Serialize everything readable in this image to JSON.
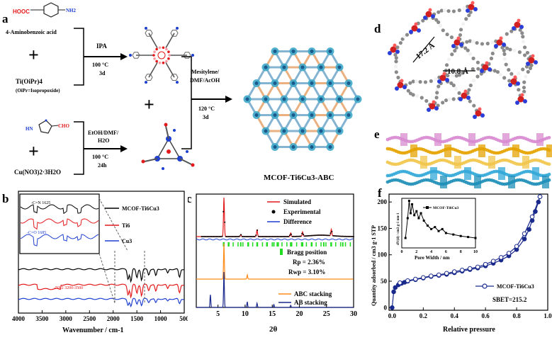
{
  "panels": {
    "a": {
      "label": "a",
      "aminobenzoic_formula_left": "HOOC",
      "aminobenzoic_formula_right": "NH2",
      "reagent1": "4-Aminobenzoic acid",
      "reagent2": "Ti(OiPr)4",
      "reagent2_note": "(OiPr=Isopropoxide)",
      "cond1_solvent": "IPA",
      "cond1_temp": "100 °C",
      "cond1_time": "3d",
      "imidazole_label": "CHO",
      "imidazole_hn": "HN",
      "reagent3": "Cu(NO3)2·3H2O",
      "cond2_solvent": "EtOH/DMF/",
      "cond2_solvent2": "H2O",
      "cond2_temp": "100 °C",
      "cond2_time": "24h",
      "cond3_line1": "Mesitylene/",
      "cond3_line2": "DMF/AcOH",
      "cond3_temp": "120 °C",
      "cond3_time": "3d",
      "plus": "+",
      "product": "MCOF-Ti6Cu3-ABC"
    },
    "b": {
      "label": "b",
      "xlabel": "Wavenumber / cm-1",
      "xticks": [
        "4000",
        "3500",
        "3000",
        "2500",
        "2000",
        "1500",
        "1000",
        "500"
      ],
      "legend": [
        "MCOF-Ti6Cu3",
        "Ti6",
        "Cu3"
      ],
      "annotations": [
        "-C=N 1625",
        "-C=O 1685",
        "-NH2 3200-3500"
      ]
    },
    "c": {
      "label": "c",
      "legend": [
        "Simulated",
        "Experimental",
        "Difference"
      ],
      "bragg": "Bragg position",
      "rp": "Rp  =  2.36%",
      "rwp": "Rwp  =  3.10%",
      "stack_legend": [
        "ABC stacking",
        "AB stacking"
      ],
      "xlabel": "2θ",
      "xticks": [
        "5",
        "10",
        "15",
        "20",
        "25",
        "30"
      ]
    },
    "d": {
      "label": "d",
      "dim1": "17.2 Å",
      "dim2": "10.8 Å"
    },
    "e": {
      "label": "e"
    },
    "f": {
      "label": "f",
      "ylabel": "Quantity adsorbed / cm3 g-1 STP",
      "xlabel": "Relative pressure",
      "yticks": [
        "0",
        "50",
        "100",
        "150",
        "200"
      ],
      "xticks": [
        "0.0",
        "0.2",
        "0.4",
        "0.6",
        "0.8",
        "1.0"
      ],
      "legend": "MCOF-Ti6Cu3",
      "sbet": "SBET=215.2",
      "inset_title": "MCOF-Ti6Cu3",
      "inset_xlabel": "Pore Width / nm",
      "inset_ylabel": "dV(d) / cm3 g-1 nm-1",
      "inset_xticks": [
        "0",
        "2",
        "4",
        "6",
        "8",
        "10"
      ]
    }
  },
  "chart_data": [
    {
      "type": "line",
      "panel": "b",
      "xlabel": "Wavenumber / cm-1",
      "xlim": [
        4000,
        500
      ],
      "series": [
        {
          "name": "MCOF-Ti6Cu3",
          "color": "#000000"
        },
        {
          "name": "Ti6",
          "color": "#e31a1c"
        },
        {
          "name": "Cu3",
          "color": "#1f3fd0"
        }
      ]
    },
    {
      "type": "line",
      "panel": "c",
      "xlabel": "2θ",
      "xlim": [
        1,
        30
      ],
      "series": [
        {
          "name": "Simulated",
          "color": "#e31a1c"
        },
        {
          "name": "Experimental",
          "color": "#000000"
        },
        {
          "name": "Difference",
          "color": "#1f3fd0"
        },
        {
          "name": "Bragg position",
          "color": "#22dd22"
        },
        {
          "name": "ABC stacking",
          "color": "#ff8c1a"
        },
        {
          "name": "AB stacking",
          "color": "#1a2a8c"
        }
      ],
      "bragg_positions": [
        6.1,
        7.0,
        9.2,
        10.6,
        12.2,
        14.0,
        15.3,
        16.1,
        18.4,
        20.6,
        22.3,
        24.5,
        25.9,
        28.0
      ]
    },
    {
      "type": "line",
      "panel": "f",
      "xlabel": "Relative pressure",
      "ylabel": "Quantity adsorbed / cm3 g-1 STP",
      "xlim": [
        0,
        1.0
      ],
      "ylim": [
        0,
        215
      ],
      "series": [
        {
          "name": "MCOF-Ti6Cu3 adsorption",
          "x": [
            0.0,
            0.01,
            0.02,
            0.04,
            0.06,
            0.08,
            0.1,
            0.15,
            0.2,
            0.25,
            0.3,
            0.35,
            0.4,
            0.45,
            0.5,
            0.55,
            0.6,
            0.65,
            0.7,
            0.75,
            0.8,
            0.85,
            0.88,
            0.9,
            0.92,
            0.94,
            0.95
          ],
          "y": [
            0,
            30,
            38,
            43,
            46,
            48,
            50,
            53,
            56,
            59,
            61,
            63,
            66,
            69,
            72,
            75,
            79,
            84,
            90,
            98,
            110,
            130,
            148,
            165,
            182,
            200,
            210
          ]
        },
        {
          "name": "MCOF-Ti6Cu3 desorption",
          "x": [
            0.95,
            0.9,
            0.85,
            0.8,
            0.75,
            0.7,
            0.65,
            0.6,
            0.55,
            0.5,
            0.45,
            0.4,
            0.35,
            0.3,
            0.25,
            0.2,
            0.15,
            0.1,
            0.05
          ],
          "y": [
            210,
            172,
            140,
            116,
            103,
            95,
            88,
            82,
            77,
            74,
            71,
            68,
            65,
            62,
            60,
            57,
            54,
            51,
            47
          ]
        }
      ],
      "annotation": "SBET=215.2"
    },
    {
      "type": "line",
      "panel": "f-inset",
      "xlabel": "Pore Width / nm",
      "ylabel": "dV(d) / cm3 g-1 nm-1",
      "xlim": [
        0,
        10
      ],
      "series": [
        {
          "name": "MCOF-Ti6Cu3",
          "x": [
            0.5,
            0.8,
            1.0,
            1.2,
            1.4,
            1.7,
            2.0,
            2.3,
            2.6,
            3.0,
            3.5,
            4.0,
            4.5,
            5.0,
            5.5,
            6.0,
            7.0,
            8.0,
            9.0,
            10.0
          ],
          "y": [
            0.2,
            0.6,
            0.95,
            0.7,
            0.88,
            0.66,
            0.74,
            0.6,
            0.7,
            0.55,
            0.45,
            0.38,
            0.42,
            0.34,
            0.38,
            0.3,
            0.27,
            0.24,
            0.22,
            0.2
          ]
        }
      ]
    }
  ]
}
